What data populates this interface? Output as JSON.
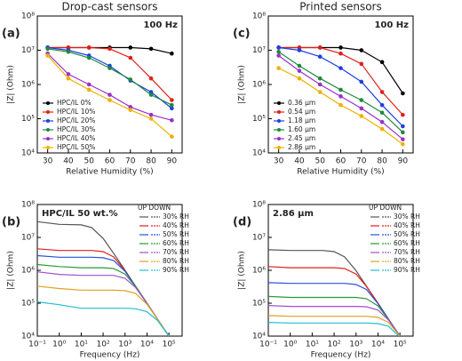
{
  "chart_data": [
    {
      "type": "line",
      "panel": "(a)",
      "title": "Drop-cast sensors",
      "annotation": "100 Hz",
      "annotation_position": "upper right",
      "xlabel": "Relative Humidity (%)",
      "ylabel": "|Z| (Ohm)",
      "markers": true,
      "xlog": false,
      "ylog": true,
      "legend": "lower left",
      "x": [
        30,
        40,
        50,
        60,
        70,
        80,
        90
      ],
      "xlim": [
        25,
        95
      ],
      "xticks": [
        30,
        40,
        50,
        60,
        70,
        80,
        90
      ],
      "ylim": [
        10000,
        100000000
      ],
      "yticks": [
        {
          "value": 10000,
          "label": "10⁴"
        },
        {
          "value": 100000,
          "label": "10⁵"
        },
        {
          "value": 1000000,
          "label": "10⁶"
        },
        {
          "value": 10000000,
          "label": "10⁷"
        },
        {
          "value": 100000000,
          "label": "10⁸"
        }
      ],
      "series": [
        {
          "name": "HPC/IL 0%",
          "color": "#000000",
          "values": [
            12000000,
            12000000,
            12000000,
            12000000,
            12000000,
            11000000,
            8000000
          ]
        },
        {
          "name": "HPC/IL 10%",
          "color": "#e0201b",
          "values": [
            12000000,
            12000000,
            12000000,
            11000000,
            6000000,
            1500000,
            350000
          ]
        },
        {
          "name": "HPC/IL 20%",
          "color": "#1f3fe0",
          "values": [
            12000000,
            10000000,
            7000000,
            3500000,
            1300000,
            600000,
            200000
          ]
        },
        {
          "name": "HPC/IL 30%",
          "color": "#1f8a3c",
          "values": [
            11000000,
            9000000,
            6000000,
            3000000,
            1400000,
            500000,
            250000
          ]
        },
        {
          "name": "HPC/IL 40%",
          "color": "#9b30c8",
          "values": [
            8000000,
            2000000,
            1000000,
            500000,
            220000,
            130000,
            90000
          ]
        },
        {
          "name": "HPC/IL 50%",
          "color": "#f0b000",
          "values": [
            7000000,
            1500000,
            700000,
            350000,
            180000,
            100000,
            30000
          ]
        }
      ]
    },
    {
      "type": "line",
      "panel": "(b)",
      "annotation": "HPC/IL 50 wt.%",
      "annotation_position": "upper left",
      "xlabel": "Frequency (Hz)",
      "ylabel": "|Z| (Ohm)",
      "markers": false,
      "xlog": true,
      "ylog": true,
      "legend": "upper right",
      "legend_title": "UP  DOWN",
      "x": [
        0.1,
        1,
        10,
        30,
        100,
        300,
        1000,
        3000,
        10000,
        30000,
        100000
      ],
      "xlim": [
        0.1,
        400000
      ],
      "xticks": [
        {
          "value": 0.1,
          "label": "10⁻¹"
        },
        {
          "value": 1,
          "label": "10⁰"
        },
        {
          "value": 10,
          "label": "10¹"
        },
        {
          "value": 100,
          "label": "10²"
        },
        {
          "value": 1000,
          "label": "10³"
        },
        {
          "value": 10000,
          "label": "10⁴"
        },
        {
          "value": 100000,
          "label": "10⁵"
        }
      ],
      "ylim": [
        10000,
        100000000
      ],
      "yticks": [
        {
          "value": 10000,
          "label": "10⁴"
        },
        {
          "value": 100000,
          "label": "10⁵"
        },
        {
          "value": 1000000,
          "label": "10⁶"
        },
        {
          "value": 10000000,
          "label": "10⁷"
        },
        {
          "value": 100000000,
          "label": "10⁸"
        }
      ],
      "series": [
        {
          "name": "30% RH",
          "color": "#555555",
          "values": [
            30000000,
            25000000,
            24000000,
            20000000,
            9300000,
            3300000,
            1000000,
            330000,
            100000,
            33000,
            10000
          ]
        },
        {
          "name": "40% RH",
          "color": "#e0201b",
          "values": [
            4500000,
            4000000,
            4000000,
            4000000,
            3700000,
            2560000,
            970000,
            330000,
            100000,
            33000,
            10000
          ]
        },
        {
          "name": "50% RH",
          "color": "#2850e0",
          "values": [
            2800000,
            2500000,
            2500000,
            2500000,
            2400000,
            2000000,
            930000,
            330000,
            100000,
            33000,
            10000
          ]
        },
        {
          "name": "60% RH",
          "color": "#2a9a3a",
          "values": [
            1500000,
            1300000,
            1200000,
            1200000,
            1200000,
            1130000,
            770000,
            320000,
            100000,
            33000,
            10000
          ]
        },
        {
          "name": "70% RH",
          "color": "#a050d0",
          "values": [
            900000,
            750000,
            700000,
            700000,
            700000,
            700000,
            570000,
            300000,
            99000,
            33000,
            10000
          ]
        },
        {
          "name": "80% RH",
          "color": "#e0a020",
          "values": [
            330000,
            280000,
            250000,
            250000,
            250000,
            250000,
            240000,
            200000,
            93000,
            33000,
            10000
          ]
        },
        {
          "name": "90% RH",
          "color": "#20c0d0",
          "values": [
            110000,
            90000,
            70000,
            70000,
            70000,
            70000,
            70000,
            68000,
            55000,
            30000,
            10000
          ]
        }
      ]
    },
    {
      "type": "line",
      "panel": "(c)",
      "title": "Printed sensors",
      "annotation": "100 Hz",
      "annotation_position": "upper right",
      "xlabel": "Relative Humidity (%)",
      "ylabel": "|Z| (Ohm)",
      "markers": true,
      "xlog": false,
      "ylog": true,
      "legend": "lower left",
      "x": [
        30,
        40,
        50,
        60,
        70,
        80,
        90
      ],
      "xlim": [
        25,
        95
      ],
      "xticks": [
        30,
        40,
        50,
        60,
        70,
        80,
        90
      ],
      "ylim": [
        10000,
        100000000
      ],
      "yticks": [
        {
          "value": 10000,
          "label": "10⁴"
        },
        {
          "value": 100000,
          "label": "10⁵"
        },
        {
          "value": 1000000,
          "label": "10⁶"
        },
        {
          "value": 10000000,
          "label": "10⁷"
        },
        {
          "value": 100000000,
          "label": "10⁸"
        }
      ],
      "series": [
        {
          "name": "0.36 μm",
          "color": "#000000",
          "values": [
            12000000,
            12000000,
            12000000,
            12000000,
            10000000,
            4500000,
            550000
          ]
        },
        {
          "name": "0.54 μm",
          "color": "#e0201b",
          "values": [
            12000000,
            12000000,
            12000000,
            8000000,
            4000000,
            600000,
            130000
          ]
        },
        {
          "name": "1.18 μm",
          "color": "#1f3fe0",
          "values": [
            12000000,
            10000000,
            6500000,
            3000000,
            1200000,
            250000,
            60000
          ]
        },
        {
          "name": "1.60 μm",
          "color": "#1f8a3c",
          "values": [
            9000000,
            3500000,
            1500000,
            700000,
            350000,
            150000,
            40000
          ]
        },
        {
          "name": "2.45 μm",
          "color": "#9b30c8",
          "values": [
            7000000,
            2500000,
            1000000,
            450000,
            200000,
            80000,
            25000
          ]
        },
        {
          "name": "2.86 μm",
          "color": "#f0b000",
          "values": [
            3000000,
            1500000,
            600000,
            250000,
            120000,
            50000,
            18000
          ]
        }
      ]
    },
    {
      "type": "line",
      "panel": "(d)",
      "annotation": "2.86 μm",
      "annotation_position": "upper left",
      "xlabel": "Frequency (Hz)",
      "ylabel": "|Z| (Ohm)",
      "markers": false,
      "xlog": true,
      "ylog": true,
      "legend": "upper right",
      "legend_title": "UP  DOWN",
      "x": [
        0.1,
        1,
        10,
        30,
        100,
        300,
        1000,
        3000,
        10000,
        30000,
        100000
      ],
      "xlim": [
        0.1,
        400000
      ],
      "xticks": [
        {
          "value": 0.1,
          "label": "10⁻¹"
        },
        {
          "value": 1,
          "label": "10⁰"
        },
        {
          "value": 10,
          "label": "10¹"
        },
        {
          "value": 100,
          "label": "10²"
        },
        {
          "value": 1000,
          "label": "10³"
        },
        {
          "value": 10000,
          "label": "10⁴"
        },
        {
          "value": 100000,
          "label": "10⁵"
        }
      ],
      "ylim": [
        10000,
        100000000
      ],
      "yticks": [
        {
          "value": 10000,
          "label": "10⁴"
        },
        {
          "value": 100000,
          "label": "10⁵"
        },
        {
          "value": 1000000,
          "label": "10⁶"
        },
        {
          "value": 10000000,
          "label": "10⁷"
        },
        {
          "value": 100000000,
          "label": "10⁸"
        }
      ],
      "series": [
        {
          "name": "30% RH",
          "color": "#555555",
          "values": [
            4200000,
            4000000,
            4000000,
            4000000,
            3700000,
            2560000,
            970000,
            330000,
            100000,
            33000,
            10000
          ]
        },
        {
          "name": "40% RH",
          "color": "#e0201b",
          "values": [
            1300000,
            1200000,
            1200000,
            1200000,
            1200000,
            1130000,
            770000,
            320000,
            100000,
            33000,
            10000
          ]
        },
        {
          "name": "50% RH",
          "color": "#2850e0",
          "values": [
            420000,
            400000,
            400000,
            400000,
            400000,
            400000,
            370000,
            260000,
            97000,
            33000,
            10000
          ]
        },
        {
          "name": "60% RH",
          "color": "#2a9a3a",
          "values": [
            160000,
            150000,
            150000,
            150000,
            150000,
            150000,
            150000,
            137000,
            83000,
            32000,
            10000
          ]
        },
        {
          "name": "70% RH",
          "color": "#a050d0",
          "values": [
            85000,
            80000,
            80000,
            80000,
            80000,
            80000,
            80000,
            78000,
            62000,
            31000,
            10000
          ]
        },
        {
          "name": "80% RH",
          "color": "#e0a020",
          "values": [
            42000,
            40000,
            40000,
            40000,
            40000,
            40000,
            40000,
            40000,
            37000,
            26000,
            10000
          ]
        },
        {
          "name": "90% RH",
          "color": "#20c0d0",
          "values": [
            26000,
            25000,
            25000,
            25000,
            25000,
            25000,
            25000,
            25000,
            24000,
            20000,
            9300
          ]
        }
      ]
    }
  ]
}
